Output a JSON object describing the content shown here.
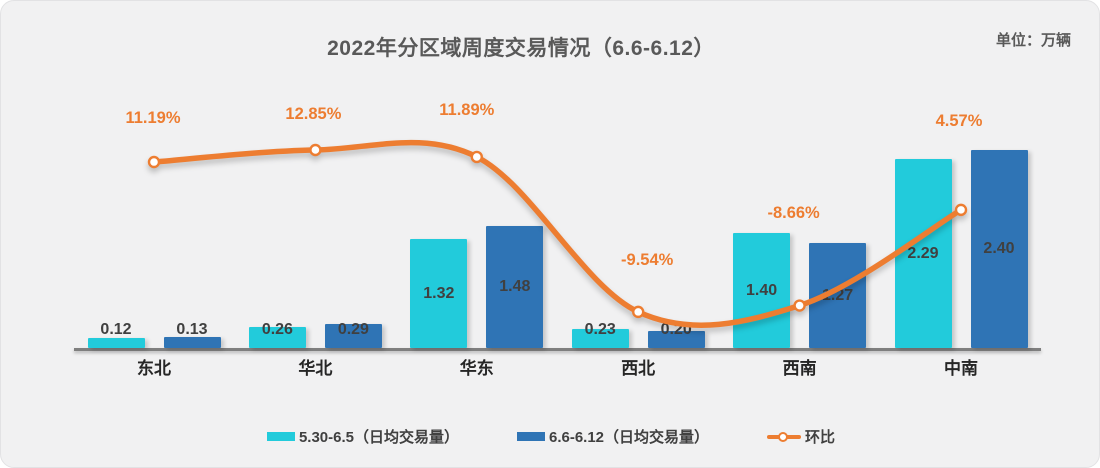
{
  "title": "2022年分区域周度交易情况（6.6-6.12）",
  "unit_label": "单位：万辆",
  "colors": {
    "series1": "#22CBDB",
    "series2": "#2F74B5",
    "line": "#ED7D31",
    "axis_line": "#7F7F7F",
    "value_label": "#404040",
    "category_label": "#262626",
    "title_text": "#595959",
    "panel_bg": "#F1F1F2"
  },
  "chart_data": {
    "type": "bar",
    "subtype": "grouped-bar-with-smoothed-line-overlay",
    "title": "2022年分区域周度交易情况（6.6-6.12）",
    "unit": "万辆",
    "categories": [
      "东北",
      "华北",
      "华东",
      "西北",
      "西南",
      "中南"
    ],
    "series": [
      {
        "name": "5.30-6.5（日均交易量）",
        "type": "bar",
        "color": "#22CBDB",
        "values": [
          0.12,
          0.26,
          1.32,
          0.23,
          1.4,
          2.29
        ]
      },
      {
        "name": "6.6-6.12（日均交易量）",
        "type": "bar",
        "color": "#2F74B5",
        "values": [
          0.13,
          0.29,
          1.48,
          0.2,
          1.27,
          2.4
        ]
      },
      {
        "name": "环比",
        "type": "line",
        "smooth": true,
        "color": "#ED7D31",
        "marker": "circle-white-fill",
        "unit": "%",
        "values": [
          11.19,
          12.85,
          11.89,
          -9.54,
          -8.66,
          4.57
        ],
        "labels": [
          "11.19%",
          "12.85%",
          "11.89%",
          "-9.54%",
          "-8.66%",
          "4.57%"
        ]
      }
    ],
    "bar_ylim": [
      0,
      2.6
    ],
    "grid": false,
    "legend_position": "bottom",
    "value_label_format": "0.00"
  },
  "legend": [
    {
      "label": "5.30-6.5（日均交易量）",
      "swatch": "bar",
      "color": "#22CBDB"
    },
    {
      "label": "6.6-6.12（日均交易量）",
      "swatch": "bar",
      "color": "#2F74B5"
    },
    {
      "label": "环比",
      "swatch": "line-marker",
      "color": "#ED7D31"
    }
  ]
}
